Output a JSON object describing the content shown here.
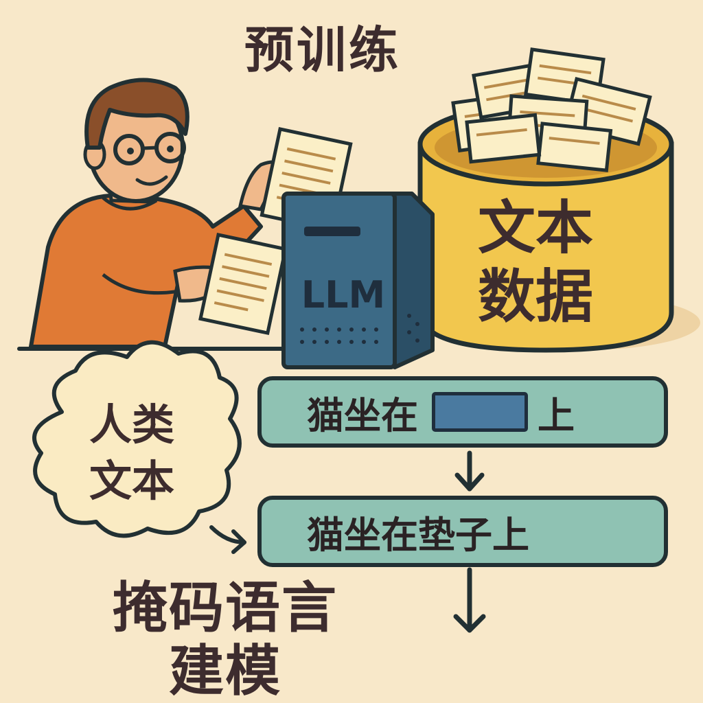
{
  "title": "预训练",
  "database": {
    "label_line1": "文本",
    "label_line2": "数据"
  },
  "machine": {
    "label": "LLM"
  },
  "cloud": {
    "label_line1": "人类",
    "label_line2": "文本"
  },
  "masked_box": {
    "text_before": "猫坐在",
    "text_after": "上"
  },
  "filled_box": {
    "text": "猫坐在垫子上"
  },
  "method": {
    "line1": "掩码语言",
    "line2": "建模"
  },
  "colors": {
    "background": "#f8e8c9",
    "shirt": "#e07a35",
    "bin": "#f2c74e",
    "machine": "#3c6a86",
    "box": "#8fc2b3",
    "mask": "#4a7aa0",
    "paper": "#fbefc7",
    "cloud": "#faebc3",
    "outline": "#223033"
  }
}
